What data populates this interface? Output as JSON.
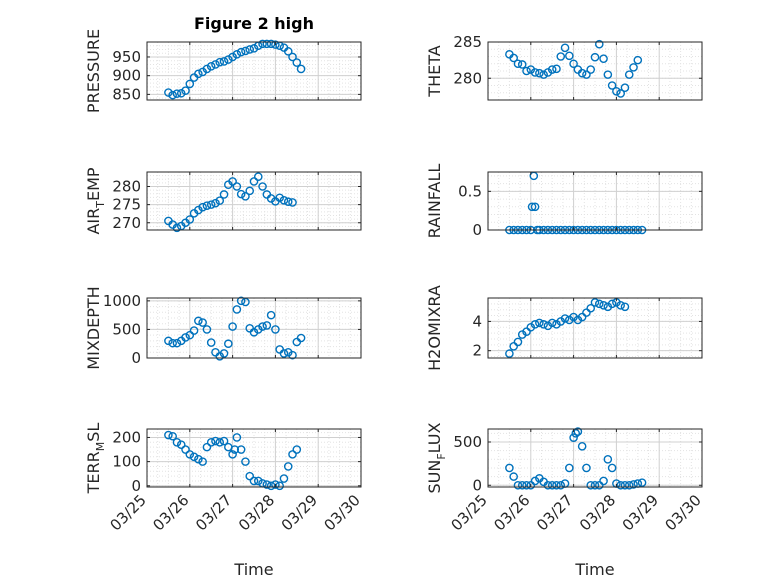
{
  "figure": {
    "title": "Figure 2 high"
  },
  "colors": {
    "marker": "#0072bd",
    "axis": "#262626",
    "grid": "#d0d0d0",
    "minor_grid": "#e3e3e3"
  },
  "chart_data": [
    {
      "type": "scatter",
      "marker": "circle",
      "title": "Figure 2 high",
      "ylabel": "PRESSURE",
      "ylim": [
        835,
        990
      ],
      "yticks": [
        850,
        900,
        950
      ],
      "xlim": [
        0,
        5
      ],
      "xtick_labels_shown": false,
      "points": [
        [
          0.5,
          855
        ],
        [
          0.6,
          848
        ],
        [
          0.7,
          852
        ],
        [
          0.8,
          853
        ],
        [
          0.9,
          860
        ],
        [
          1.0,
          878
        ],
        [
          1.1,
          895
        ],
        [
          1.2,
          905
        ],
        [
          1.3,
          910
        ],
        [
          1.4,
          918
        ],
        [
          1.5,
          925
        ],
        [
          1.6,
          930
        ],
        [
          1.7,
          936
        ],
        [
          1.8,
          938
        ],
        [
          1.9,
          943
        ],
        [
          2.0,
          950
        ],
        [
          2.1,
          957
        ],
        [
          2.2,
          963
        ],
        [
          2.3,
          966
        ],
        [
          2.4,
          970
        ],
        [
          2.5,
          973
        ],
        [
          2.6,
          980
        ],
        [
          2.7,
          985
        ],
        [
          2.8,
          985
        ],
        [
          2.9,
          985
        ],
        [
          3.0,
          983
        ],
        [
          3.1,
          980
        ],
        [
          3.2,
          975
        ],
        [
          3.3,
          965
        ],
        [
          3.4,
          950
        ],
        [
          3.5,
          935
        ],
        [
          3.6,
          918
        ]
      ]
    },
    {
      "type": "scatter",
      "marker": "circle",
      "ylabel": "THETA",
      "ylim": [
        277,
        285
      ],
      "yticks": [
        280,
        285
      ],
      "xlim": [
        0,
        5
      ],
      "xtick_labels_shown": false,
      "points": [
        [
          0.5,
          283.3
        ],
        [
          0.6,
          282.8
        ],
        [
          0.7,
          282.0
        ],
        [
          0.8,
          281.9
        ],
        [
          0.9,
          281.0
        ],
        [
          1.0,
          281.2
        ],
        [
          1.1,
          280.8
        ],
        [
          1.2,
          280.7
        ],
        [
          1.3,
          280.5
        ],
        [
          1.4,
          280.8
        ],
        [
          1.5,
          281.2
        ],
        [
          1.6,
          281.3
        ],
        [
          1.7,
          283.0
        ],
        [
          1.8,
          284.2
        ],
        [
          1.9,
          283.1
        ],
        [
          2.0,
          282.0
        ],
        [
          2.1,
          281.2
        ],
        [
          2.2,
          280.7
        ],
        [
          2.3,
          280.5
        ],
        [
          2.4,
          281.2
        ],
        [
          2.5,
          282.9
        ],
        [
          2.6,
          284.7
        ],
        [
          2.7,
          282.7
        ],
        [
          2.8,
          280.5
        ],
        [
          2.9,
          279.0
        ],
        [
          3.0,
          278.2
        ],
        [
          3.1,
          277.9
        ],
        [
          3.2,
          278.7
        ],
        [
          3.3,
          280.5
        ],
        [
          3.4,
          281.5
        ],
        [
          3.5,
          282.5
        ]
      ]
    },
    {
      "type": "scatter",
      "marker": "circle",
      "ylabel": "AIR_TEMP",
      "ylim": [
        268,
        284
      ],
      "yticks": [
        270,
        275,
        280
      ],
      "xlim": [
        0,
        5
      ],
      "xtick_labels_shown": false,
      "points": [
        [
          0.5,
          270.5
        ],
        [
          0.6,
          269.5
        ],
        [
          0.7,
          268.6
        ],
        [
          0.8,
          269.1
        ],
        [
          0.9,
          270.0
        ],
        [
          1.0,
          270.9
        ],
        [
          1.1,
          272.6
        ],
        [
          1.2,
          273.5
        ],
        [
          1.3,
          274.3
        ],
        [
          1.4,
          274.7
        ],
        [
          1.5,
          275.0
        ],
        [
          1.6,
          275.4
        ],
        [
          1.7,
          276.1
        ],
        [
          1.8,
          277.8
        ],
        [
          1.9,
          280.5
        ],
        [
          2.0,
          281.4
        ],
        [
          2.1,
          280.0
        ],
        [
          2.2,
          277.9
        ],
        [
          2.3,
          277.3
        ],
        [
          2.4,
          278.8
        ],
        [
          2.5,
          281.4
        ],
        [
          2.6,
          282.7
        ],
        [
          2.7,
          280.0
        ],
        [
          2.8,
          277.8
        ],
        [
          2.9,
          276.7
        ],
        [
          3.0,
          275.9
        ],
        [
          3.1,
          276.9
        ],
        [
          3.2,
          276.2
        ],
        [
          3.3,
          275.8
        ],
        [
          3.4,
          275.6
        ]
      ]
    },
    {
      "type": "scatter",
      "marker": "circle",
      "ylabel": "RAINFALL",
      "ylim": [
        0,
        0.75
      ],
      "yticks": [
        0,
        0.5
      ],
      "xlim": [
        0,
        5
      ],
      "xtick_labels_shown": false,
      "points": [
        [
          0.5,
          0
        ],
        [
          0.6,
          0
        ],
        [
          0.7,
          0
        ],
        [
          0.8,
          0
        ],
        [
          0.9,
          0
        ],
        [
          1.0,
          0
        ],
        [
          1.03,
          0.3
        ],
        [
          1.07,
          0.7
        ],
        [
          1.1,
          0.3
        ],
        [
          1.15,
          0
        ],
        [
          1.2,
          0
        ],
        [
          1.3,
          0
        ],
        [
          1.4,
          0
        ],
        [
          1.5,
          0
        ],
        [
          1.6,
          0
        ],
        [
          1.7,
          0
        ],
        [
          1.8,
          0
        ],
        [
          1.9,
          0
        ],
        [
          2.0,
          0
        ],
        [
          2.1,
          0
        ],
        [
          2.2,
          0
        ],
        [
          2.3,
          0
        ],
        [
          2.4,
          0
        ],
        [
          2.5,
          0
        ],
        [
          2.6,
          0
        ],
        [
          2.7,
          0
        ],
        [
          2.8,
          0
        ],
        [
          2.9,
          0
        ],
        [
          3.0,
          0
        ],
        [
          3.1,
          0
        ],
        [
          3.2,
          0
        ],
        [
          3.3,
          0
        ],
        [
          3.4,
          0
        ],
        [
          3.5,
          0
        ],
        [
          3.6,
          0
        ]
      ]
    },
    {
      "type": "scatter",
      "marker": "circle",
      "ylabel": "MIXDEPTH",
      "ylim": [
        0,
        1050
      ],
      "yticks": [
        0,
        500,
        1000
      ],
      "xlim": [
        0,
        5
      ],
      "xtick_labels_shown": false,
      "points": [
        [
          0.5,
          300
        ],
        [
          0.6,
          260
        ],
        [
          0.7,
          260
        ],
        [
          0.8,
          300
        ],
        [
          0.9,
          360
        ],
        [
          1.0,
          400
        ],
        [
          1.1,
          480
        ],
        [
          1.2,
          650
        ],
        [
          1.3,
          620
        ],
        [
          1.4,
          500
        ],
        [
          1.5,
          270
        ],
        [
          1.6,
          100
        ],
        [
          1.7,
          30
        ],
        [
          1.8,
          80
        ],
        [
          1.9,
          250
        ],
        [
          2.0,
          550
        ],
        [
          2.1,
          850
        ],
        [
          2.2,
          1000
        ],
        [
          2.3,
          980
        ],
        [
          2.4,
          520
        ],
        [
          2.5,
          450
        ],
        [
          2.6,
          500
        ],
        [
          2.7,
          550
        ],
        [
          2.8,
          570
        ],
        [
          2.9,
          750
        ],
        [
          3.0,
          500
        ],
        [
          3.1,
          150
        ],
        [
          3.2,
          80
        ],
        [
          3.3,
          100
        ],
        [
          3.4,
          50
        ],
        [
          3.5,
          280
        ],
        [
          3.6,
          350
        ]
      ]
    },
    {
      "type": "scatter",
      "marker": "circle",
      "ylabel": "H2OMIXRA",
      "ylim": [
        1.5,
        5.6
      ],
      "yticks": [
        2,
        4
      ],
      "xlim": [
        0,
        5
      ],
      "xtick_labels_shown": false,
      "points": [
        [
          0.5,
          1.8
        ],
        [
          0.6,
          2.3
        ],
        [
          0.7,
          2.6
        ],
        [
          0.8,
          3.1
        ],
        [
          0.9,
          3.3
        ],
        [
          1.0,
          3.6
        ],
        [
          1.1,
          3.8
        ],
        [
          1.2,
          3.9
        ],
        [
          1.3,
          3.8
        ],
        [
          1.4,
          3.7
        ],
        [
          1.5,
          3.9
        ],
        [
          1.6,
          3.8
        ],
        [
          1.7,
          4.0
        ],
        [
          1.8,
          4.2
        ],
        [
          1.9,
          4.1
        ],
        [
          2.0,
          4.3
        ],
        [
          2.1,
          4.1
        ],
        [
          2.2,
          4.3
        ],
        [
          2.3,
          4.6
        ],
        [
          2.4,
          4.9
        ],
        [
          2.5,
          5.3
        ],
        [
          2.6,
          5.2
        ],
        [
          2.7,
          5.1
        ],
        [
          2.8,
          5.0
        ],
        [
          2.9,
          5.2
        ],
        [
          3.0,
          5.3
        ],
        [
          3.1,
          5.1
        ],
        [
          3.2,
          5.0
        ]
      ]
    },
    {
      "type": "scatter",
      "marker": "circle",
      "ylabel": "TERR_MSL",
      "ylim": [
        -5,
        235
      ],
      "yticks": [
        0,
        100,
        200
      ],
      "xlim": [
        0,
        5
      ],
      "xtick_labels": [
        "03/25",
        "03/26",
        "03/27",
        "03/28",
        "03/29",
        "03/30"
      ],
      "xlabel": "Time",
      "points": [
        [
          0.5,
          210
        ],
        [
          0.6,
          205
        ],
        [
          0.7,
          180
        ],
        [
          0.8,
          170
        ],
        [
          0.9,
          150
        ],
        [
          1.0,
          130
        ],
        [
          1.1,
          120
        ],
        [
          1.2,
          110
        ],
        [
          1.3,
          100
        ],
        [
          1.4,
          160
        ],
        [
          1.5,
          180
        ],
        [
          1.6,
          185
        ],
        [
          1.7,
          180
        ],
        [
          1.8,
          185
        ],
        [
          1.9,
          160
        ],
        [
          2.0,
          130
        ],
        [
          2.05,
          150
        ],
        [
          2.1,
          200
        ],
        [
          2.2,
          150
        ],
        [
          2.3,
          100
        ],
        [
          2.4,
          40
        ],
        [
          2.5,
          20
        ],
        [
          2.6,
          20
        ],
        [
          2.7,
          10
        ],
        [
          2.8,
          5
        ],
        [
          2.9,
          0
        ],
        [
          3.0,
          5
        ],
        [
          3.1,
          0
        ],
        [
          3.2,
          30
        ],
        [
          3.3,
          80
        ],
        [
          3.4,
          130
        ],
        [
          3.5,
          150
        ]
      ]
    },
    {
      "type": "scatter",
      "marker": "circle",
      "ylabel": "SUN_FLUX",
      "ylim": [
        -20,
        650
      ],
      "yticks": [
        0,
        500
      ],
      "xlim": [
        0,
        5
      ],
      "xtick_labels": [
        "03/25",
        "03/26",
        "03/27",
        "03/28",
        "03/29",
        "03/30"
      ],
      "xlabel": "Time",
      "points": [
        [
          0.5,
          200
        ],
        [
          0.6,
          100
        ],
        [
          0.7,
          0
        ],
        [
          0.8,
          0
        ],
        [
          0.9,
          0
        ],
        [
          1.0,
          0
        ],
        [
          1.1,
          50
        ],
        [
          1.2,
          80
        ],
        [
          1.3,
          40
        ],
        [
          1.4,
          0
        ],
        [
          1.5,
          0
        ],
        [
          1.6,
          0
        ],
        [
          1.7,
          0
        ],
        [
          1.8,
          20
        ],
        [
          1.9,
          200
        ],
        [
          2.0,
          550
        ],
        [
          2.05,
          600
        ],
        [
          2.1,
          620
        ],
        [
          2.2,
          450
        ],
        [
          2.3,
          200
        ],
        [
          2.4,
          0
        ],
        [
          2.5,
          0
        ],
        [
          2.6,
          0
        ],
        [
          2.7,
          50
        ],
        [
          2.8,
          300
        ],
        [
          2.9,
          200
        ],
        [
          3.0,
          20
        ],
        [
          3.1,
          0
        ],
        [
          3.2,
          0
        ],
        [
          3.3,
          0
        ],
        [
          3.4,
          10
        ],
        [
          3.5,
          20
        ],
        [
          3.6,
          30
        ]
      ]
    }
  ]
}
